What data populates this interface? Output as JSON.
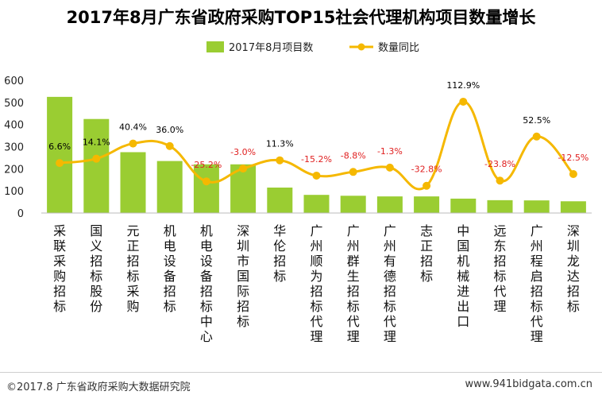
{
  "title": "2017年8月广东省政府采购TOP15社会代理机构项目数量增长",
  "footer": {
    "left": "©2017.8 广东省政府采购大数据研究院",
    "right": "www.941bidgata.com.cn"
  },
  "colors": {
    "bar": "#9ACD32",
    "line": "#F5B800",
    "label_positive": "#000000",
    "label_negative": "#E02020"
  },
  "chart_data": {
    "type": "bar",
    "title": "2017年8月广东省政府采购TOP15社会代理机构项目数量增长",
    "categories": [
      "采联采购招标",
      "国义招标股份",
      "元正招标采购",
      "机电设备招标",
      "机电设备招标中心",
      "深圳市国际招标",
      "华伦招标",
      "广州顺为招标代理",
      "广州群生招标代理",
      "广州有德招标代理",
      "志正招标",
      "中国机械进出口",
      "远东招标代理",
      "广州程启招标代理",
      "深圳龙达招标"
    ],
    "series": [
      {
        "name": "2017年8月项目数",
        "type": "bar",
        "axis": "left",
        "values": [
          525,
          425,
          275,
          235,
          220,
          220,
          115,
          82,
          78,
          75,
          75,
          65,
          58,
          57,
          53
        ]
      },
      {
        "name": "数量同比",
        "type": "line",
        "axis": "right",
        "unit": "%",
        "values": [
          6.6,
          14.1,
          40.4,
          36.0,
          -25.2,
          -3.0,
          11.3,
          -15.2,
          -8.8,
          -1.3,
          -32.8,
          112.9,
          -23.8,
          52.5,
          -12.5
        ],
        "labels": [
          "6.6%",
          "14.1%",
          "40.4%",
          "36.0%",
          "-25.2%",
          "-3.0%",
          "11.3%",
          "-15.2%",
          "-8.8%",
          "-1.3%",
          "-32.8%",
          "112.9%",
          "-23.8%",
          "52.5%",
          "-12.5%"
        ]
      }
    ],
    "y_ticks": [
      "0",
      "100",
      "200",
      "300",
      "400",
      "500",
      "600"
    ],
    "ylim": [
      0,
      600
    ],
    "y2lim": [
      -80,
      150
    ],
    "legend": {
      "position": "top-center",
      "entries": [
        "2017年8月项目数",
        "数量同比"
      ]
    },
    "grid": false
  }
}
